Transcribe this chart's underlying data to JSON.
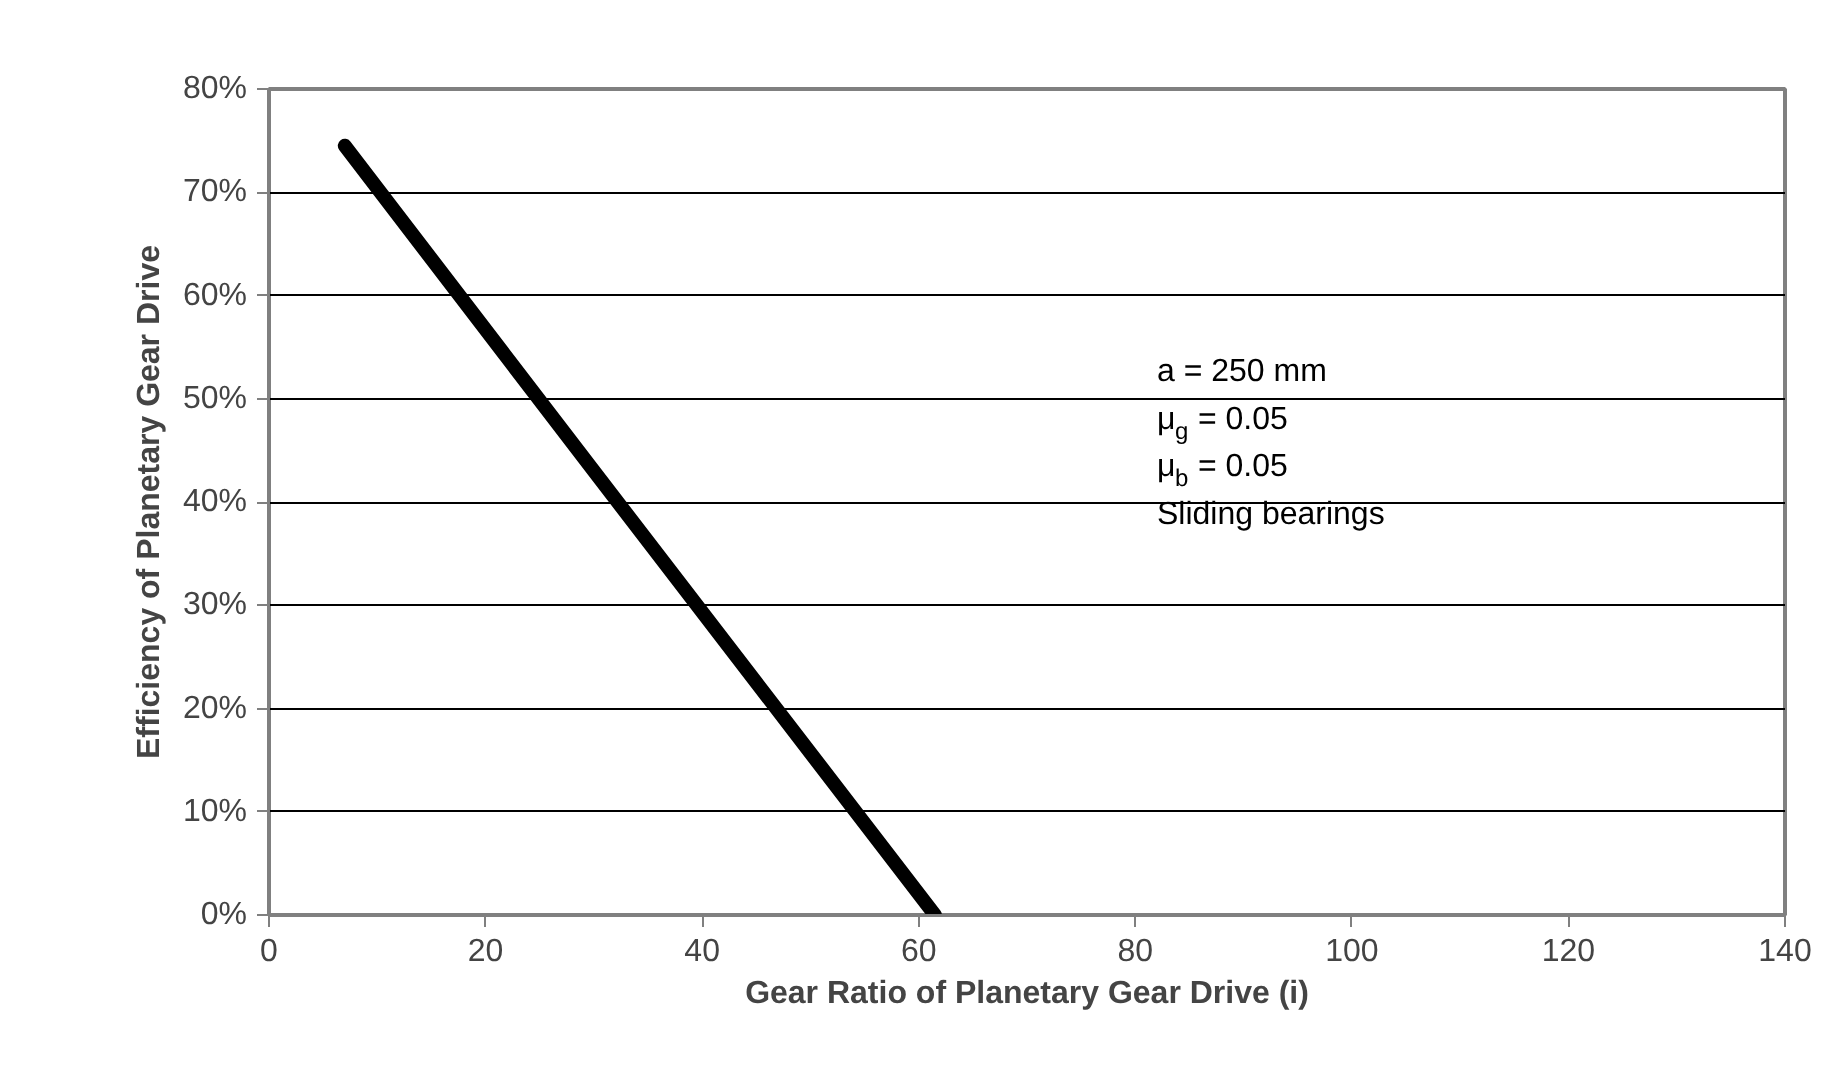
{
  "chart_data": {
    "type": "line",
    "xlabel": "Gear Ratio of Planetary Gear Drive (i)",
    "ylabel": "Efficiency of Planetary Gear Drive",
    "series": [
      {
        "color": "#000000",
        "x": [
          7,
          30,
          61.5
        ],
        "values": [
          74.5,
          43,
          0
        ]
      }
    ],
    "xlim": [
      0,
      140
    ],
    "xticks": [
      0,
      20,
      40,
      60,
      80,
      100,
      120,
      140
    ],
    "ylim": [
      0,
      80
    ],
    "yticks": [
      {
        "value": 0,
        "label": "0%"
      },
      {
        "value": 10,
        "label": "10%"
      },
      {
        "value": 20,
        "label": "20%"
      },
      {
        "value": 30,
        "label": "30%"
      },
      {
        "value": 40,
        "label": "40%"
      },
      {
        "value": 50,
        "label": "50%"
      },
      {
        "value": 60,
        "label": "60%"
      },
      {
        "value": 70,
        "label": "70%"
      },
      {
        "value": 80,
        "label": "80%"
      }
    ],
    "grid": "y",
    "marker": "none",
    "line_style": "solid",
    "annotations": [
      "a = 250 mm",
      "μ$_{g}$ = 0.05",
      "μ$_{b}$ = 0.05",
      "Sliding bearings"
    ]
  }
}
